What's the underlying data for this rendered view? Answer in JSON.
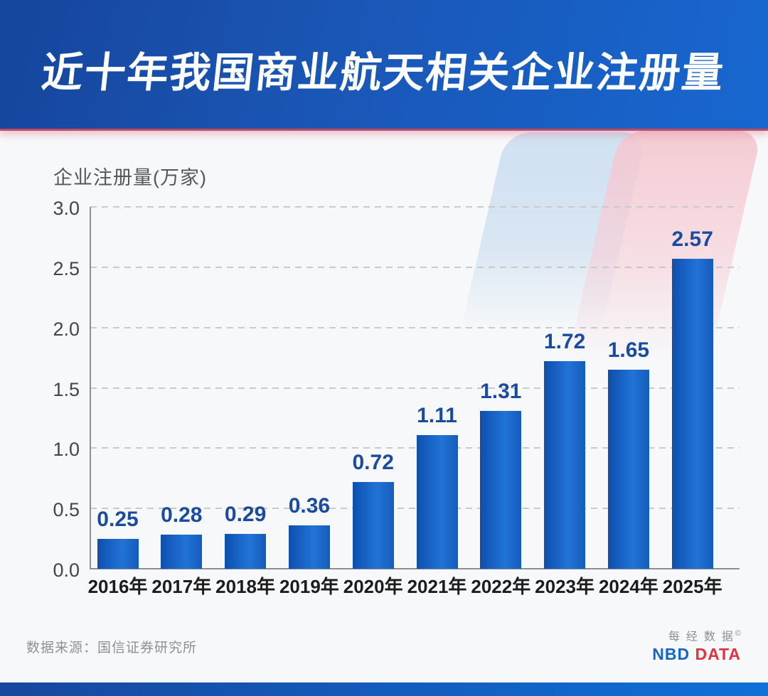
{
  "banner": {
    "title": "近十年我国商业航天相关企业注册量"
  },
  "chart_data": {
    "type": "bar",
    "title": "近十年我国商业航天相关企业注册量",
    "ylabel": "企业注册量(万家)",
    "xlabel": "",
    "categories": [
      "2016年",
      "2017年",
      "2018年",
      "2019年",
      "2020年",
      "2021年",
      "2022年",
      "2023年",
      "2024年",
      "2025年"
    ],
    "values": [
      0.25,
      0.28,
      0.29,
      0.36,
      0.72,
      1.11,
      1.31,
      1.72,
      1.65,
      2.57
    ],
    "value_labels": [
      "0.25",
      "0.28",
      "0.29",
      "0.36",
      "0.72",
      "1.11",
      "1.31",
      "1.72",
      "1.65",
      "2.57"
    ],
    "ylim": [
      0.0,
      3.0
    ],
    "ytick_labels": [
      "0.0",
      "0.5",
      "1.0",
      "1.5",
      "2.0",
      "2.5",
      "3.0"
    ],
    "grid": "horizontal-dashed",
    "legend": "none"
  },
  "footer": {
    "source": "数据来源：国信证券研究所",
    "logo_cn": "每经数据",
    "copyright": "©",
    "logo_nbd": "NBD",
    "logo_data": "DATA"
  },
  "colors": {
    "banner_blue_dark": "#16459c",
    "banner_blue_light": "#1767d0",
    "divider_red": "#c24b5f",
    "bar_edge": "#0d4fae",
    "bar_center": "#2273d8",
    "bar_right": "#155cba",
    "value_label_blue": "#1b4b9e",
    "axis_gray": "#8f8f8f",
    "grid_gray": "#c9c9c9",
    "nbd_blue": "#1566c9",
    "nbd_red": "#e1333f",
    "strip_left": "#17479e",
    "strip_right": "#0e70d8"
  }
}
